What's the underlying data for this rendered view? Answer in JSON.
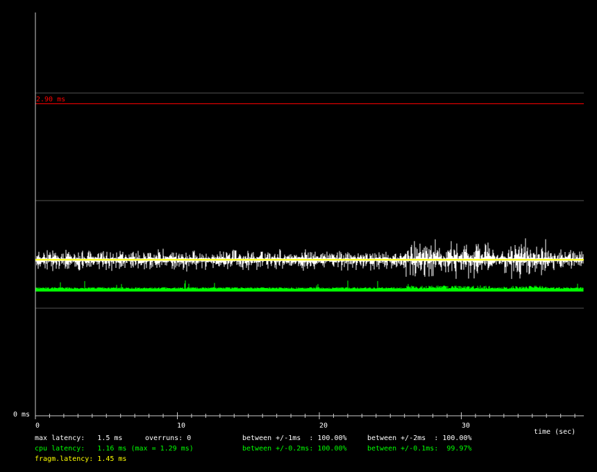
{
  "chart_data": {
    "type": "line",
    "xlabel": "time (sec)",
    "ylabel": "",
    "x_ticks": [
      "0",
      "10",
      "20",
      "30"
    ],
    "xlim": [
      0,
      38.6
    ],
    "ylim": [
      0,
      3.8
    ],
    "y_zero_label": "0 ms",
    "grid_ms": [
      1,
      2,
      3
    ],
    "threshold": {
      "value": 2.9,
      "label": "2.90 ms",
      "color": "#ff0000"
    },
    "series": [
      {
        "name": "max latency",
        "color": "#ffffff",
        "center": 1.45,
        "jitter": 0.1
      },
      {
        "name": "fragm.latency",
        "color": "#ffff00",
        "value": 1.45
      },
      {
        "name": "cpu latency",
        "color": "#00ff00",
        "value": 1.16,
        "max": 1.29
      }
    ],
    "grid": true
  },
  "stats": {
    "max_latency": "max latency:   1.5 ms",
    "overruns": "overruns: 0",
    "between_1ms": "between +/-1ms  : 100.00%",
    "between_2ms": "between +/-2ms  : 100.00%",
    "cpu_latency": "cpu latency:   1.16 ms (max = 1.29 ms)",
    "between_02ms": "between +/-0.2ms: 100.00%",
    "between_01ms": "between +/-0.1ms:  99.97%",
    "fragm_latency": "fragm.latency: 1.45 ms"
  }
}
